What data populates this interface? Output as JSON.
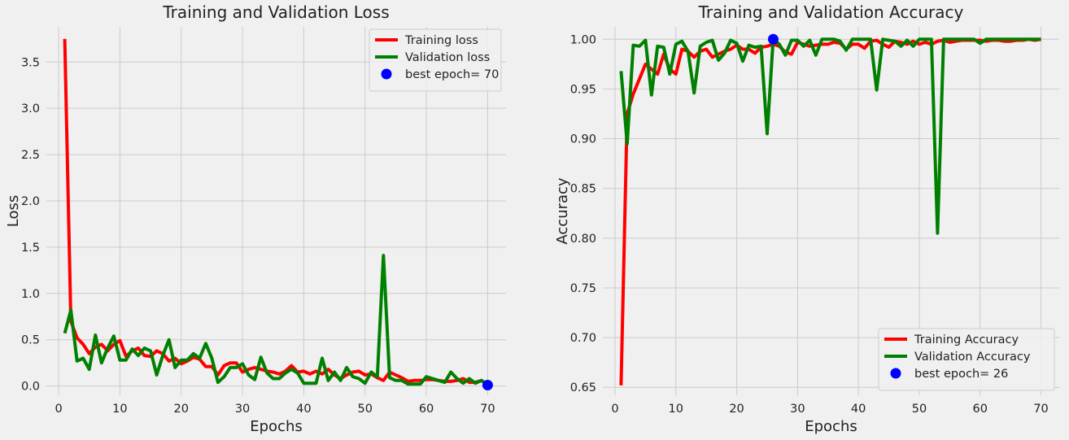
{
  "chart_data": [
    {
      "type": "line",
      "title": "Training and Validation Loss",
      "xlabel": "Epochs",
      "ylabel": "Loss",
      "xlim": [
        -2,
        73
      ],
      "ylim": [
        -0.1,
        3.88
      ],
      "xticks": [
        0,
        10,
        20,
        30,
        40,
        50,
        60,
        70
      ],
      "yticks": [
        0.0,
        0.5,
        1.0,
        1.5,
        2.0,
        2.5,
        3.0,
        3.5
      ],
      "ytick_labels": [
        "0.0",
        "0.5",
        "1.0",
        "1.5",
        "2.0",
        "2.5",
        "3.0",
        "3.5"
      ],
      "grid": true,
      "legend_position": "top-right",
      "x": [
        1,
        2,
        3,
        4,
        5,
        6,
        7,
        8,
        9,
        10,
        11,
        12,
        13,
        14,
        15,
        16,
        17,
        18,
        19,
        20,
        21,
        22,
        23,
        24,
        25,
        26,
        27,
        28,
        29,
        30,
        31,
        32,
        33,
        34,
        35,
        36,
        37,
        38,
        39,
        40,
        41,
        42,
        43,
        44,
        45,
        46,
        47,
        48,
        49,
        50,
        51,
        52,
        53,
        54,
        55,
        56,
        57,
        58,
        59,
        60,
        61,
        62,
        63,
        64,
        65,
        66,
        67,
        68,
        69,
        70
      ],
      "series": [
        {
          "name": "Training loss",
          "color": "#ff0000",
          "values": [
            3.75,
            0.7,
            0.52,
            0.45,
            0.35,
            0.42,
            0.45,
            0.38,
            0.45,
            0.49,
            0.32,
            0.38,
            0.41,
            0.33,
            0.32,
            0.38,
            0.35,
            0.27,
            0.3,
            0.24,
            0.27,
            0.31,
            0.29,
            0.21,
            0.21,
            0.12,
            0.22,
            0.25,
            0.25,
            0.15,
            0.18,
            0.2,
            0.18,
            0.16,
            0.15,
            0.13,
            0.16,
            0.22,
            0.15,
            0.16,
            0.13,
            0.16,
            0.13,
            0.18,
            0.12,
            0.08,
            0.12,
            0.15,
            0.16,
            0.12,
            0.13,
            0.09,
            0.06,
            0.15,
            0.12,
            0.09,
            0.05,
            0.06,
            0.06,
            0.07,
            0.07,
            0.06,
            0.05,
            0.05,
            0.06,
            0.08,
            0.04,
            0.04,
            0.06,
            0.01
          ]
        },
        {
          "name": "Validation loss",
          "color": "#008000",
          "values": [
            0.57,
            0.82,
            0.27,
            0.3,
            0.18,
            0.55,
            0.25,
            0.41,
            0.54,
            0.28,
            0.28,
            0.4,
            0.33,
            0.41,
            0.38,
            0.12,
            0.33,
            0.5,
            0.2,
            0.28,
            0.28,
            0.35,
            0.3,
            0.46,
            0.3,
            0.04,
            0.1,
            0.2,
            0.2,
            0.24,
            0.12,
            0.07,
            0.31,
            0.14,
            0.08,
            0.08,
            0.14,
            0.18,
            0.14,
            0.03,
            0.03,
            0.03,
            0.3,
            0.06,
            0.15,
            0.06,
            0.2,
            0.1,
            0.08,
            0.03,
            0.15,
            0.1,
            1.41,
            0.09,
            0.06,
            0.06,
            0.02,
            0.02,
            0.02,
            0.1,
            0.08,
            0.06,
            0.04,
            0.15,
            0.08,
            0.03,
            0.08,
            0.03,
            0.06,
            0.01
          ]
        }
      ],
      "best_point": {
        "label": "best epoch= 70",
        "x": 70,
        "y": 0.01,
        "color": "#0000ff"
      }
    },
    {
      "type": "line",
      "title": "Training and Validation Accuracy",
      "xlabel": "Epochs",
      "ylabel": "Accuracy",
      "xlim": [
        -2,
        73
      ],
      "ylim": [
        0.642,
        1.0125
      ],
      "xticks": [
        0,
        10,
        20,
        30,
        40,
        50,
        60,
        70
      ],
      "yticks": [
        0.65,
        0.7,
        0.75,
        0.8,
        0.85,
        0.9,
        0.95,
        1.0
      ],
      "ytick_labels": [
        "0.65",
        "0.70",
        "0.75",
        "0.80",
        "0.85",
        "0.90",
        "0.95",
        "1.00"
      ],
      "grid": true,
      "legend_position": "bottom-right",
      "x": [
        1,
        2,
        3,
        4,
        5,
        6,
        7,
        8,
        9,
        10,
        11,
        12,
        13,
        14,
        15,
        16,
        17,
        18,
        19,
        20,
        21,
        22,
        23,
        24,
        25,
        26,
        27,
        28,
        29,
        30,
        31,
        32,
        33,
        34,
        35,
        36,
        37,
        38,
        39,
        40,
        41,
        42,
        43,
        44,
        45,
        46,
        47,
        48,
        49,
        50,
        51,
        52,
        53,
        54,
        55,
        56,
        57,
        58,
        59,
        60,
        61,
        62,
        63,
        64,
        65,
        66,
        67,
        68,
        69,
        70
      ],
      "series": [
        {
          "name": "Training Accuracy",
          "color": "#ff0000",
          "values": [
            0.652,
            0.925,
            0.945,
            0.96,
            0.975,
            0.97,
            0.965,
            0.985,
            0.97,
            0.965,
            0.99,
            0.988,
            0.982,
            0.988,
            0.99,
            0.982,
            0.985,
            0.988,
            0.99,
            0.994,
            0.99,
            0.99,
            0.986,
            0.992,
            0.993,
            0.995,
            0.993,
            0.987,
            0.985,
            0.997,
            0.995,
            0.993,
            0.994,
            0.995,
            0.995,
            0.997,
            0.996,
            0.99,
            0.995,
            0.995,
            0.991,
            0.998,
            0.999,
            0.995,
            0.992,
            0.998,
            0.997,
            0.995,
            0.998,
            0.995,
            0.997,
            0.995,
            0.998,
            0.999,
            0.997,
            0.998,
            0.999,
            0.999,
            0.999,
            0.999,
            0.998,
            0.999,
            0.999,
            0.998,
            0.998,
            0.999,
            0.999,
            1.0,
            0.999,
            1.0
          ]
        },
        {
          "name": "Validation Accuracy",
          "color": "#008000",
          "values": [
            0.968,
            0.895,
            0.994,
            0.993,
            0.999,
            0.944,
            0.993,
            0.992,
            0.965,
            0.995,
            0.998,
            0.988,
            0.946,
            0.993,
            0.997,
            0.999,
            0.979,
            0.986,
            0.999,
            0.996,
            0.978,
            0.994,
            0.992,
            0.993,
            0.905,
            1.0,
            0.995,
            0.984,
            0.999,
            0.999,
            0.993,
            0.999,
            0.984,
            1.0,
            1.0,
            1.0,
            0.998,
            0.989,
            1.0,
            1.0,
            1.0,
            1.0,
            0.949,
            1.0,
            0.999,
            0.998,
            0.993,
            0.999,
            0.993,
            1.0,
            1.0,
            1.0,
            0.805,
            1.0,
            1.0,
            1.0,
            1.0,
            1.0,
            1.0,
            0.996,
            1.0,
            1.0,
            1.0,
            1.0,
            1.0,
            1.0,
            1.0,
            1.0,
            1.0,
            1.0
          ]
        }
      ],
      "best_point": {
        "label": "best epoch= 26",
        "x": 26,
        "y": 1.0,
        "color": "#0000ff"
      }
    }
  ]
}
